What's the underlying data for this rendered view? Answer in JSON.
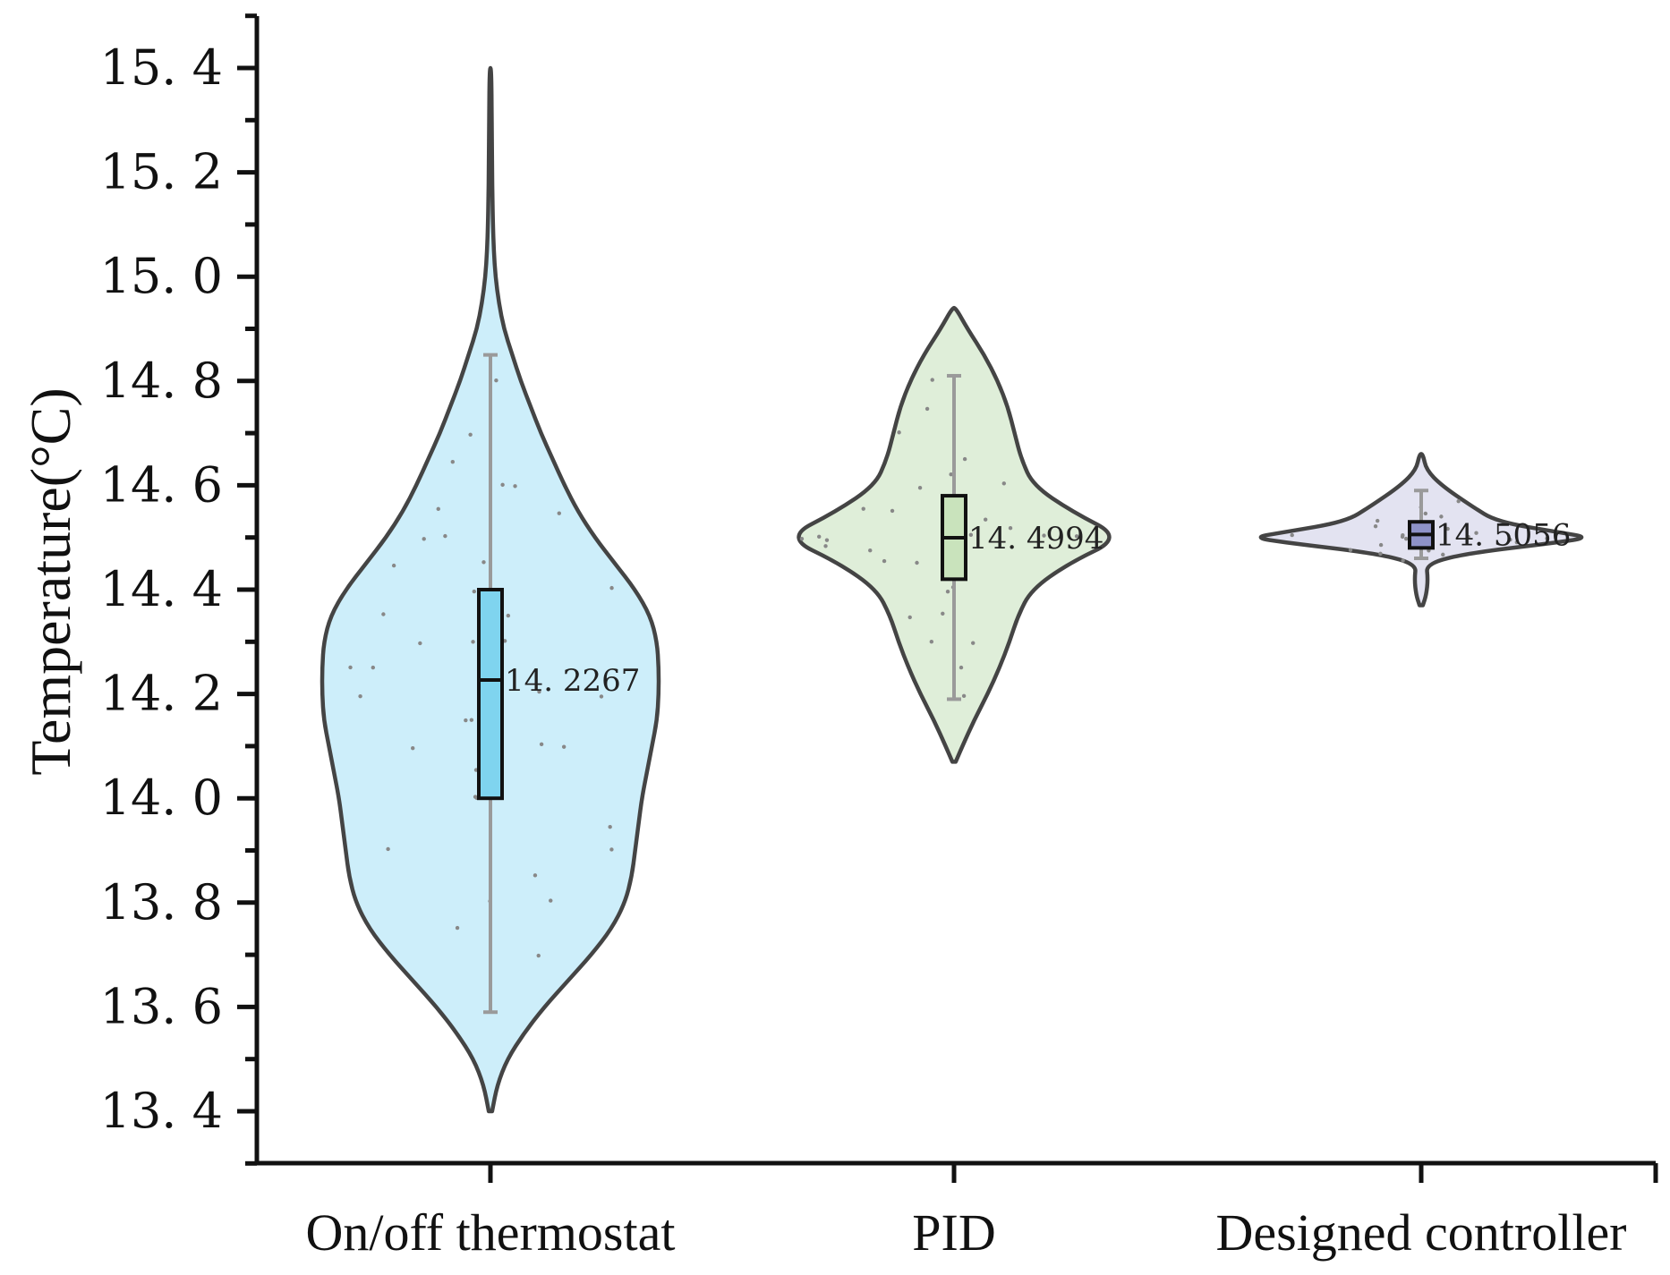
{
  "chart_data": {
    "type": "violin",
    "title": "",
    "xlabel": "",
    "ylabel": "Temperature(°C)",
    "ylim": [
      13.3,
      15.5
    ],
    "yticks": [
      13.4,
      13.6,
      13.8,
      14.0,
      14.2,
      14.4,
      14.6,
      14.8,
      15.0,
      15.2,
      15.4
    ],
    "ytick_labels": [
      "13. 4",
      "13. 6",
      "13. 8",
      "14. 0",
      "14. 2",
      "14. 4",
      "14. 6",
      "14. 8",
      "15. 0",
      "15. 2",
      "15. 4"
    ],
    "categories": [
      "On/off thermostat",
      "PID",
      "Designed controller"
    ],
    "series": [
      {
        "name": "On/off thermostat",
        "fill": "#cdeefa",
        "box_fill": "#7fd4ef",
        "min": 13.59,
        "q1": 14.0,
        "median": 14.2267,
        "q3": 14.4,
        "max": 14.85,
        "median_label": "14. 2267",
        "kde_y": [
          13.4,
          13.45,
          13.5,
          13.55,
          13.6,
          13.65,
          13.7,
          13.75,
          13.8,
          13.85,
          13.9,
          13.95,
          14.0,
          14.05,
          14.1,
          14.15,
          14.2,
          14.25,
          14.3,
          14.35,
          14.4,
          14.45,
          14.5,
          14.55,
          14.6,
          14.65,
          14.7,
          14.75,
          14.8,
          14.85,
          14.9,
          14.95,
          15.0,
          15.05,
          15.1,
          15.15,
          15.2,
          15.3,
          15.4
        ],
        "kde_w": [
          0.01,
          0.04,
          0.1,
          0.2,
          0.32,
          0.46,
          0.6,
          0.72,
          0.8,
          0.84,
          0.86,
          0.88,
          0.9,
          0.93,
          0.96,
          0.99,
          1.0,
          1.0,
          0.99,
          0.95,
          0.86,
          0.74,
          0.62,
          0.52,
          0.44,
          0.37,
          0.3,
          0.24,
          0.18,
          0.13,
          0.08,
          0.05,
          0.03,
          0.02,
          0.015,
          0.012,
          0.01,
          0.008,
          0.005
        ],
        "points": [
          14.05,
          13.9,
          14.3,
          14.45,
          14.6,
          14.7,
          14.2,
          13.8,
          14.1,
          14.35,
          14.55,
          13.95,
          14.25,
          14.4,
          14.15,
          13.85,
          14.65,
          14.0,
          14.3,
          14.5,
          13.75,
          14.2,
          14.1,
          14.45,
          14.8,
          13.7,
          14.35,
          14.05,
          14.25,
          14.6,
          13.9,
          14.15,
          14.4,
          14.0,
          14.5,
          13.8,
          14.3,
          14.2,
          14.55,
          14.1
        ]
      },
      {
        "name": "PID",
        "fill": "#dfeed9",
        "box_fill": "#c9e3bc",
        "min": 14.19,
        "q1": 14.42,
        "median": 14.4994,
        "q3": 14.58,
        "max": 14.81,
        "median_label": "14. 4994",
        "kde_y": [
          14.07,
          14.1,
          14.15,
          14.2,
          14.25,
          14.3,
          14.35,
          14.4,
          14.45,
          14.5,
          14.55,
          14.6,
          14.65,
          14.7,
          14.75,
          14.8,
          14.85,
          14.9,
          14.94
        ],
        "kde_w": [
          0.01,
          0.05,
          0.12,
          0.2,
          0.27,
          0.33,
          0.38,
          0.46,
          0.68,
          1.0,
          0.7,
          0.47,
          0.4,
          0.36,
          0.32,
          0.26,
          0.18,
          0.08,
          0.01
        ],
        "points": [
          14.5,
          14.45,
          14.55,
          14.3,
          14.6,
          14.7,
          14.25,
          14.5,
          14.4,
          14.65,
          14.35,
          14.5,
          14.48,
          14.52,
          14.2,
          14.75,
          14.45,
          14.55,
          14.5,
          14.6,
          14.4,
          14.3,
          14.5,
          14.8,
          14.5,
          14.47,
          14.53,
          14.35,
          14.62,
          14.5
        ]
      },
      {
        "name": "Designed controller",
        "fill": "#e3e3f1",
        "box_fill": "#8e92c8",
        "min": 14.46,
        "q1": 14.48,
        "median": 14.5056,
        "q3": 14.53,
        "max": 14.59,
        "median_label": "14. 5056",
        "kde_y": [
          14.37,
          14.39,
          14.42,
          14.45,
          14.47,
          14.49,
          14.5,
          14.51,
          14.53,
          14.56,
          14.6,
          14.63,
          14.66
        ],
        "kde_w": [
          0.01,
          0.03,
          0.04,
          0.03,
          0.28,
          0.8,
          1.0,
          0.82,
          0.45,
          0.3,
          0.12,
          0.03,
          0.01
        ],
        "points": [
          14.5,
          14.49,
          14.51,
          14.52,
          14.48,
          14.5,
          14.53,
          14.47,
          14.5,
          14.55,
          14.5,
          14.46,
          14.54,
          14.5,
          14.51,
          14.49,
          14.56,
          14.5,
          14.48,
          14.52,
          14.5,
          14.57,
          14.5,
          14.47
        ]
      }
    ]
  }
}
